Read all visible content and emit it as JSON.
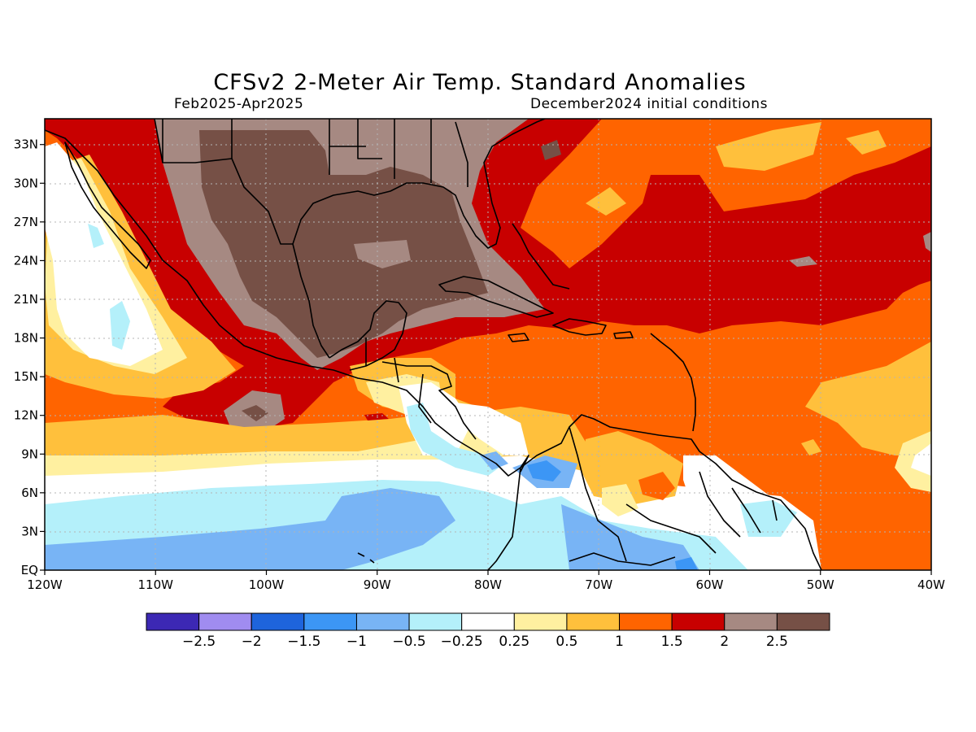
{
  "header": {
    "title": "CFSv2 2-Meter Air Temp. Standard Anomalies",
    "period": "Feb2025-Apr2025",
    "init": "December2024 initial conditions"
  },
  "map": {
    "lon_ticks": [
      "120W",
      "110W",
      "100W",
      "90W",
      "80W",
      "70W",
      "60W",
      "50W",
      "40W"
    ],
    "lat_ticks": [
      "EQ",
      "3N",
      "6N",
      "9N",
      "12N",
      "15N",
      "18N",
      "21N",
      "24N",
      "27N",
      "30N",
      "33N"
    ],
    "extent": {
      "lon": [
        -120,
        -40
      ],
      "lat": [
        0,
        35
      ]
    }
  },
  "colorbar": {
    "colors": [
      "#3c28b4",
      "#a08cf0",
      "#1e64dc",
      "#3c96f5",
      "#78b4f5",
      "#b4f0fa",
      "#ffffff",
      "#fff0a0",
      "#ffc03c",
      "#ff6400",
      "#c80000",
      "#a68982",
      "#765046"
    ],
    "labels": [
      "-2.5",
      "-2",
      "-1.5",
      "-1",
      "-0.5",
      "-0.25",
      "0.25",
      "0.5",
      "1",
      "1.5",
      "2",
      "2.5"
    ]
  }
}
